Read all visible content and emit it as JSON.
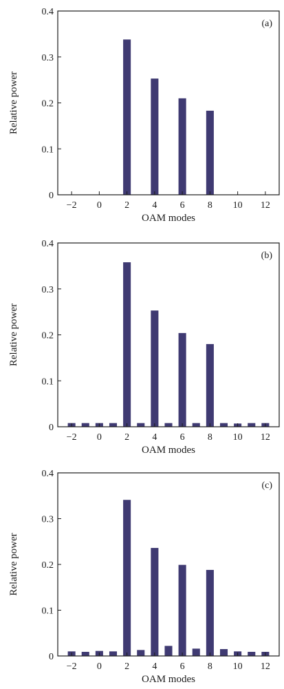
{
  "colors": {
    "bar": "#3f3a72",
    "axis": "#1a1a1a",
    "background": "#ffffff"
  },
  "chart_data": [
    {
      "type": "bar",
      "title": "",
      "panel_label": "(a)",
      "xlabel": "OAM modes",
      "ylabel": "Relative power",
      "xlim": [
        -3,
        13
      ],
      "ylim": [
        0,
        0.4
      ],
      "x_ticks": [
        "-2",
        "0",
        "2",
        "4",
        "6",
        "8",
        "10",
        "12"
      ],
      "y_ticks": [
        "0",
        "0.1",
        "0.2",
        "0.3",
        "0.4"
      ],
      "x": [
        -2,
        -1,
        0,
        1,
        2,
        3,
        4,
        5,
        6,
        7,
        8,
        9,
        10,
        11,
        12
      ],
      "values": [
        0,
        0,
        0,
        0,
        0.338,
        0,
        0.253,
        0,
        0.21,
        0,
        0.183,
        0,
        0,
        0,
        0
      ]
    },
    {
      "type": "bar",
      "title": "",
      "panel_label": "(b)",
      "xlabel": "OAM modes",
      "ylabel": "Relative power",
      "xlim": [
        -3,
        13
      ],
      "ylim": [
        0,
        0.4
      ],
      "x_ticks": [
        "-2",
        "0",
        "2",
        "4",
        "6",
        "8",
        "10",
        "12"
      ],
      "y_ticks": [
        "0",
        "0.1",
        "0.2",
        "0.3",
        "0.4"
      ],
      "x": [
        -2,
        -1,
        0,
        1,
        2,
        3,
        4,
        5,
        6,
        7,
        8,
        9,
        10,
        11,
        12
      ],
      "values": [
        0.008,
        0.008,
        0.008,
        0.008,
        0.358,
        0.008,
        0.253,
        0.008,
        0.204,
        0.008,
        0.18,
        0.008,
        0.007,
        0.008,
        0.008
      ]
    },
    {
      "type": "bar",
      "title": "",
      "panel_label": "(c)",
      "xlabel": "OAM modes",
      "ylabel": "Relative power",
      "xlim": [
        -3,
        13
      ],
      "ylim": [
        0,
        0.4
      ],
      "x_ticks": [
        "-2",
        "0",
        "2",
        "4",
        "6",
        "8",
        "10",
        "12"
      ],
      "y_ticks": [
        "0",
        "0.1",
        "0.2",
        "0.3",
        "0.4"
      ],
      "x": [
        -2,
        -1,
        0,
        1,
        2,
        3,
        4,
        5,
        6,
        7,
        8,
        9,
        10,
        11,
        12
      ],
      "values": [
        0.01,
        0.009,
        0.011,
        0.01,
        0.341,
        0.013,
        0.236,
        0.022,
        0.199,
        0.016,
        0.188,
        0.015,
        0.01,
        0.009,
        0.009
      ]
    }
  ]
}
